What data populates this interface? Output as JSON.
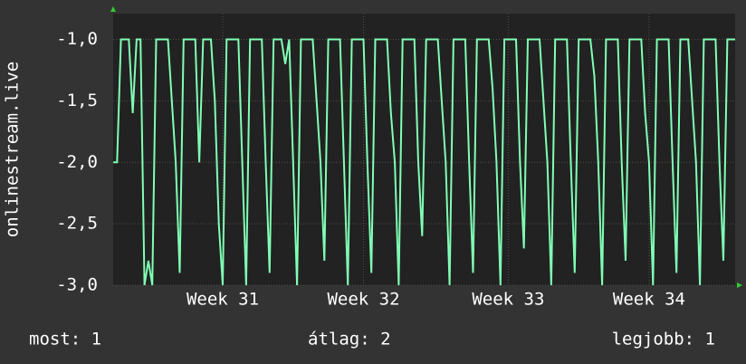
{
  "chart_data": {
    "type": "line",
    "y_label": "onlinestream.live",
    "categories": [
      null,
      null,
      null,
      null,
      null,
      null,
      null,
      null,
      null,
      null,
      null,
      null,
      null,
      null,
      null,
      null,
      null,
      null,
      null,
      null,
      null,
      null,
      null,
      null,
      null,
      null,
      null,
      null,
      "Week 31",
      null,
      null,
      null,
      null,
      null,
      null,
      null,
      null,
      null,
      null,
      null,
      null,
      null,
      null,
      null,
      null,
      null,
      null,
      null,
      null,
      null,
      null,
      null,
      null,
      null,
      null,
      null,
      null,
      null,
      null,
      null,
      null,
      null,
      null,
      null,
      "Week 32",
      null,
      null,
      null,
      null,
      null,
      null,
      null,
      null,
      null,
      null,
      null,
      null,
      null,
      null,
      null,
      null,
      null,
      null,
      null,
      null,
      null,
      null,
      null,
      null,
      null,
      null,
      null,
      null,
      null,
      null,
      null,
      null,
      null,
      null,
      null,
      null,
      "Week 33",
      null,
      null,
      null,
      null,
      null,
      null,
      null,
      null,
      null,
      null,
      null,
      null,
      null,
      null,
      null,
      null,
      null,
      null,
      null,
      null,
      null,
      null,
      null,
      null,
      null,
      null,
      null,
      null,
      null,
      null,
      null,
      null,
      null,
      null,
      null,
      "Week 34",
      null,
      null,
      null,
      null,
      null,
      null,
      null,
      null,
      null,
      null,
      null,
      null,
      null,
      null,
      null,
      null,
      null,
      null,
      null,
      null,
      null,
      null
    ],
    "series": [
      {
        "name": "onlinestream.live",
        "color": "#80ffb4",
        "values": [
          -2,
          -2,
          -1,
          -1,
          -1,
          -1.6,
          -1,
          -1,
          -3,
          -2.8,
          -3,
          -1,
          -1,
          -1,
          -1,
          -1.5,
          -2,
          -2.9,
          -1,
          -1,
          -1,
          -1,
          -2,
          -1,
          -1,
          -1,
          -1.5,
          -2.5,
          -3,
          -1,
          -1,
          -1,
          -1,
          -2,
          -3,
          -1,
          -1,
          -1,
          -1,
          -2,
          -2.9,
          -1,
          -1,
          -1,
          -1.2,
          -1,
          -2,
          -3,
          -1,
          -1,
          -1,
          -1,
          -1.5,
          -2,
          -2.8,
          -1,
          -1,
          -1,
          -1,
          -2,
          -3,
          -1,
          -1,
          -1,
          -1,
          -2,
          -2.9,
          -1,
          -1,
          -1,
          -1,
          -1.6,
          -2,
          -3,
          -1,
          -1,
          -1,
          -1,
          -2,
          -2.6,
          -1,
          -1,
          -1,
          -1,
          -1.5,
          -2,
          -3,
          -1,
          -1,
          -1,
          -1,
          -2,
          -2.9,
          -1,
          -1,
          -1,
          -1,
          -1.4,
          -2,
          -3,
          -1,
          -1,
          -1,
          -1,
          -2,
          -2.7,
          -1,
          -1,
          -1,
          -1,
          -1.5,
          -2,
          -3,
          -1,
          -1,
          -1,
          -1,
          -2,
          -2.9,
          -1,
          -1,
          -1,
          -1,
          -1.3,
          -2,
          -3,
          -1,
          -1,
          -1,
          -1,
          -2,
          -2.8,
          -1,
          -1,
          -1,
          -1,
          -1.6,
          -2,
          -3,
          -1,
          -1,
          -1,
          -1,
          -2,
          -2.9,
          -1,
          -1,
          -1,
          -1.5,
          -2,
          -3,
          -1,
          -1,
          -1,
          -1,
          -2,
          -2.8,
          -1,
          -1,
          -1
        ]
      }
    ],
    "ylim": [
      -3.0,
      -0.79
    ],
    "yticks": [
      {
        "value": -3.0,
        "label": "-3,0"
      },
      {
        "value": -2.5,
        "label": "-2,5"
      },
      {
        "value": -2.0,
        "label": "-2,0"
      },
      {
        "value": -1.5,
        "label": "-1,5"
      },
      {
        "value": -1.0,
        "label": "-1,0"
      }
    ],
    "grid": true,
    "footer": {
      "last": "most: 1",
      "average": "átlag: 2",
      "best": "legjobb: 1"
    }
  }
}
